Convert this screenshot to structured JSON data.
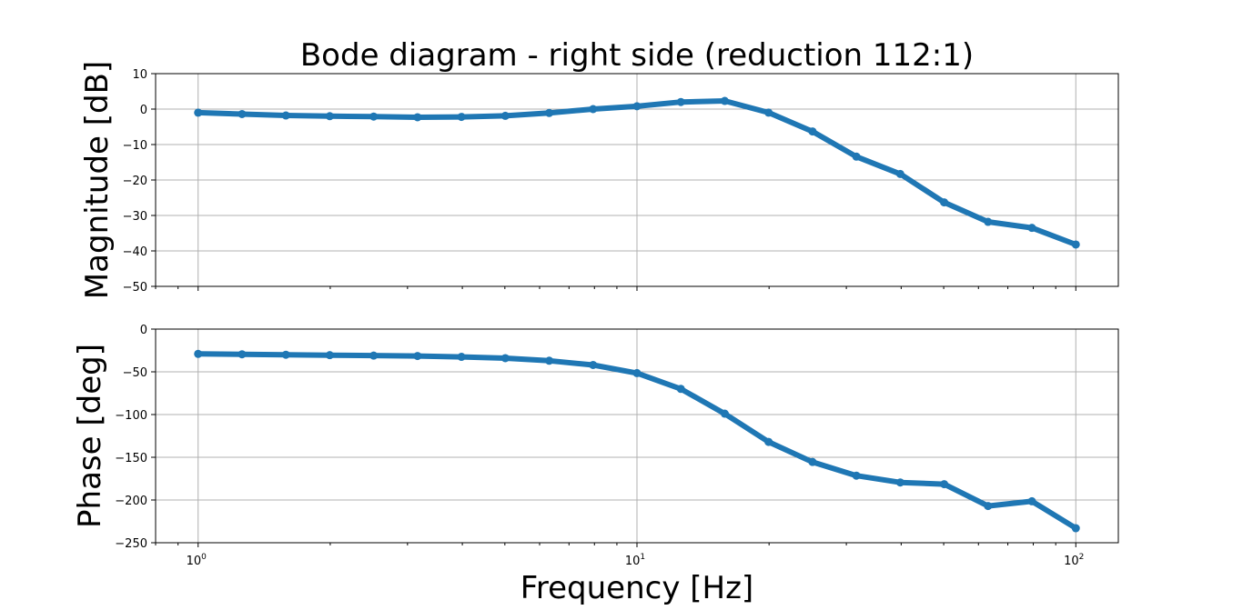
{
  "chart_data": {
    "type": "line",
    "title": "Bode diagram - right side (reduction 112:1)",
    "xlabel": "Frequency [Hz]",
    "x_scale": "log",
    "xlim": [
      0.8,
      125
    ],
    "grid": true,
    "color": "#1f77b4",
    "x": [
      1.0,
      1.259,
      1.585,
      1.995,
      2.512,
      3.162,
      3.981,
      5.012,
      6.31,
      7.943,
      10.0,
      12.59,
      15.85,
      19.95,
      25.12,
      31.62,
      39.81,
      50.12,
      63.1,
      79.43,
      100.0
    ],
    "x_ticks": [
      {
        "value": 1,
        "base": "10",
        "exp": "0"
      },
      {
        "value": 10,
        "base": "10",
        "exp": "1"
      },
      {
        "value": 100,
        "base": "10",
        "exp": "2"
      }
    ],
    "panels": [
      {
        "ylabel": "Magnitude [dB]",
        "ylim": [
          -50,
          10
        ],
        "yticks": [
          10,
          0,
          -10,
          -20,
          -30,
          -40,
          -50
        ],
        "ytick_labels": [
          "10",
          "0",
          "−10",
          "−20",
          "−30",
          "−40",
          "−50"
        ],
        "values": [
          -1.0,
          -1.4,
          -1.8,
          -2.0,
          -2.1,
          -2.3,
          -2.2,
          -1.9,
          -1.1,
          0.0,
          0.8,
          2.0,
          2.3,
          -1.0,
          -6.3,
          -13.4,
          -18.3,
          -26.3,
          -31.8,
          -33.5,
          -38.2
        ]
      },
      {
        "ylabel": "Phase [deg]",
        "ylim": [
          -250,
          0
        ],
        "yticks": [
          0,
          -50,
          -100,
          -150,
          -200,
          -250
        ],
        "ytick_labels": [
          "0",
          "−50",
          "−100",
          "−150",
          "−200",
          "−250"
        ],
        "values": [
          -29.0,
          -29.5,
          -30.0,
          -30.5,
          -31.0,
          -31.5,
          -32.5,
          -34.0,
          -37.0,
          -42.0,
          -51.5,
          -70.0,
          -99.0,
          -132.0,
          -155.5,
          -171.5,
          -179.5,
          -181.5,
          -207.0,
          -201.5,
          -233.0
        ]
      }
    ]
  }
}
